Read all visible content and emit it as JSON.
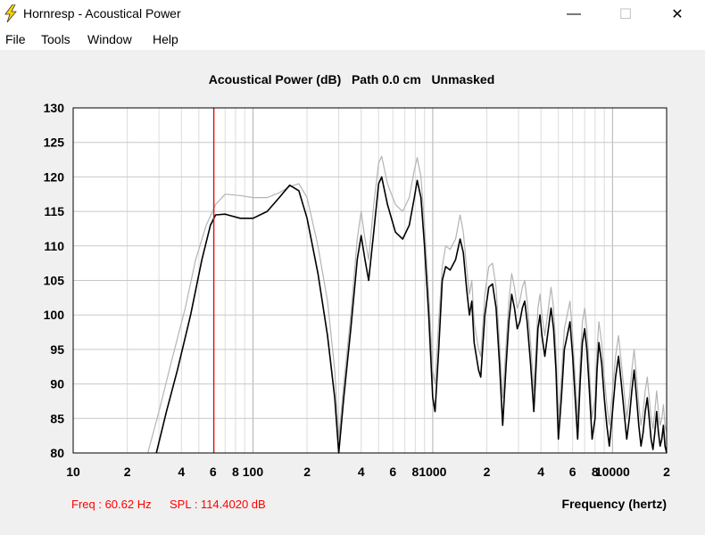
{
  "window": {
    "title": "Hornresp - Acoustical Power",
    "minimize_glyph": "—",
    "maximize_glyph": "☐",
    "close_glyph": "✕"
  },
  "menu": {
    "items": [
      {
        "label": "File"
      },
      {
        "label": "Tools"
      },
      {
        "label": "Window"
      },
      {
        "label": "Help"
      }
    ]
  },
  "colors": {
    "background": "#f0f0f0",
    "plot_bg": "#ffffff",
    "grid": "#c8c8c8",
    "primary_curve": "#000000",
    "secondary_curve": "#b4b4b4",
    "marker": "#ff0000",
    "status_text": "#ff0000"
  },
  "chart_data": {
    "type": "line",
    "title": "Acoustical Power (dB)   Path 0.0 cm   Unmasked",
    "xlabel": "Frequency (hertz)",
    "ylabel": "",
    "x_scale": "log",
    "xlim": [
      10,
      20000
    ],
    "ylim": [
      80,
      130
    ],
    "yticks": [
      80,
      85,
      90,
      95,
      100,
      105,
      110,
      115,
      120,
      125,
      130
    ],
    "xticks": [
      {
        "value": 10,
        "label": "10"
      },
      {
        "value": 20,
        "label": "2"
      },
      {
        "value": 40,
        "label": "4"
      },
      {
        "value": 60,
        "label": "6"
      },
      {
        "value": 80,
        "label": "8"
      },
      {
        "value": 100,
        "label": "100"
      },
      {
        "value": 200,
        "label": "2"
      },
      {
        "value": 400,
        "label": "4"
      },
      {
        "value": 600,
        "label": "6"
      },
      {
        "value": 800,
        "label": "8"
      },
      {
        "value": 1000,
        "label": "1000"
      },
      {
        "value": 2000,
        "label": "2"
      },
      {
        "value": 4000,
        "label": "4"
      },
      {
        "value": 6000,
        "label": "6"
      },
      {
        "value": 8000,
        "label": "8"
      },
      {
        "value": 10000,
        "label": "10000"
      },
      {
        "value": 20000,
        "label": "2"
      }
    ],
    "grid": true,
    "marker": {
      "x": 60.62
    },
    "series": [
      {
        "role": "primary",
        "points": [
          [
            29,
            80
          ],
          [
            33,
            86
          ],
          [
            38,
            92
          ],
          [
            45,
            100
          ],
          [
            52,
            108
          ],
          [
            58,
            113
          ],
          [
            62,
            114.5
          ],
          [
            70,
            114.6
          ],
          [
            85,
            114
          ],
          [
            100,
            114
          ],
          [
            120,
            115
          ],
          [
            140,
            117
          ],
          [
            160,
            118.8
          ],
          [
            180,
            118
          ],
          [
            200,
            114
          ],
          [
            230,
            106
          ],
          [
            260,
            97
          ],
          [
            285,
            88
          ],
          [
            300,
            80
          ],
          [
            320,
            88
          ],
          [
            350,
            98
          ],
          [
            380,
            108
          ],
          [
            400,
            111.5
          ],
          [
            420,
            108
          ],
          [
            440,
            105
          ],
          [
            470,
            112
          ],
          [
            500,
            119
          ],
          [
            520,
            120
          ],
          [
            560,
            116
          ],
          [
            620,
            112
          ],
          [
            680,
            111
          ],
          [
            740,
            113
          ],
          [
            790,
            117
          ],
          [
            820,
            119.5
          ],
          [
            860,
            117
          ],
          [
            900,
            110
          ],
          [
            950,
            100
          ],
          [
            1000,
            88
          ],
          [
            1030,
            86
          ],
          [
            1080,
            95
          ],
          [
            1130,
            105
          ],
          [
            1180,
            107
          ],
          [
            1250,
            106.5
          ],
          [
            1340,
            108
          ],
          [
            1420,
            111
          ],
          [
            1480,
            109
          ],
          [
            1540,
            104
          ],
          [
            1600,
            100
          ],
          [
            1650,
            102
          ],
          [
            1700,
            96
          ],
          [
            1800,
            92
          ],
          [
            1850,
            91
          ],
          [
            1950,
            100
          ],
          [
            2050,
            104
          ],
          [
            2150,
            104.5
          ],
          [
            2250,
            101
          ],
          [
            2350,
            93
          ],
          [
            2450,
            84
          ],
          [
            2550,
            92
          ],
          [
            2650,
            99
          ],
          [
            2750,
            103
          ],
          [
            2850,
            101
          ],
          [
            2950,
            98
          ],
          [
            3050,
            99
          ],
          [
            3150,
            101
          ],
          [
            3250,
            102
          ],
          [
            3350,
            99
          ],
          [
            3500,
            93
          ],
          [
            3650,
            86
          ],
          [
            3750,
            92
          ],
          [
            3850,
            98
          ],
          [
            3950,
            100
          ],
          [
            4050,
            97
          ],
          [
            4200,
            94
          ],
          [
            4400,
            98
          ],
          [
            4550,
            101
          ],
          [
            4700,
            98
          ],
          [
            4850,
            92
          ],
          [
            5000,
            82
          ],
          [
            5200,
            88
          ],
          [
            5400,
            95
          ],
          [
            5600,
            97
          ],
          [
            5800,
            99
          ],
          [
            6000,
            94
          ],
          [
            6200,
            88
          ],
          [
            6400,
            82
          ],
          [
            6600,
            90
          ],
          [
            6800,
            96
          ],
          [
            7000,
            98
          ],
          [
            7200,
            95
          ],
          [
            7400,
            90
          ],
          [
            7700,
            82
          ],
          [
            8000,
            85
          ],
          [
            8200,
            92
          ],
          [
            8400,
            96
          ],
          [
            8700,
            93
          ],
          [
            9000,
            88
          ],
          [
            9300,
            84
          ],
          [
            9600,
            81
          ],
          [
            10000,
            86
          ],
          [
            10400,
            91
          ],
          [
            10800,
            94
          ],
          [
            11200,
            90
          ],
          [
            11600,
            86
          ],
          [
            12000,
            82
          ],
          [
            12400,
            85
          ],
          [
            12800,
            89
          ],
          [
            13200,
            92
          ],
          [
            13600,
            88
          ],
          [
            14000,
            84
          ],
          [
            14400,
            81
          ],
          [
            14800,
            83
          ],
          [
            15200,
            86
          ],
          [
            15600,
            88
          ],
          [
            16000,
            85
          ],
          [
            16400,
            82
          ],
          [
            16800,
            80.5
          ],
          [
            17200,
            83
          ],
          [
            17600,
            86
          ],
          [
            18000,
            83
          ],
          [
            18400,
            81
          ],
          [
            18800,
            82
          ],
          [
            19200,
            84
          ],
          [
            19600,
            81
          ],
          [
            20000,
            80
          ]
        ]
      },
      {
        "role": "secondary",
        "points": [
          [
            26,
            80
          ],
          [
            30,
            86
          ],
          [
            35,
            93
          ],
          [
            42,
            101
          ],
          [
            48,
            108
          ],
          [
            55,
            113
          ],
          [
            62,
            116
          ],
          [
            70,
            117.5
          ],
          [
            85,
            117.3
          ],
          [
            100,
            117
          ],
          [
            120,
            117
          ],
          [
            140,
            117.7
          ],
          [
            160,
            118.6
          ],
          [
            180,
            119
          ],
          [
            200,
            117
          ],
          [
            230,
            110
          ],
          [
            260,
            102
          ],
          [
            285,
            92
          ],
          [
            300,
            82
          ],
          [
            320,
            90
          ],
          [
            350,
            100
          ],
          [
            380,
            111
          ],
          [
            400,
            115
          ],
          [
            420,
            111
          ],
          [
            440,
            108
          ],
          [
            470,
            116
          ],
          [
            500,
            122
          ],
          [
            520,
            123
          ],
          [
            560,
            119
          ],
          [
            620,
            116
          ],
          [
            680,
            115
          ],
          [
            740,
            117
          ],
          [
            790,
            121
          ],
          [
            820,
            122.8
          ],
          [
            860,
            120
          ],
          [
            900,
            113
          ],
          [
            950,
            103
          ],
          [
            1000,
            92
          ],
          [
            1030,
            90
          ],
          [
            1080,
            99
          ],
          [
            1130,
            107
          ],
          [
            1180,
            110
          ],
          [
            1250,
            109.5
          ],
          [
            1340,
            111
          ],
          [
            1420,
            114.5
          ],
          [
            1480,
            112
          ],
          [
            1540,
            107
          ],
          [
            1600,
            103
          ],
          [
            1650,
            105
          ],
          [
            1700,
            99
          ],
          [
            1800,
            95
          ],
          [
            1850,
            94
          ],
          [
            1950,
            103
          ],
          [
            2050,
            107
          ],
          [
            2150,
            107.5
          ],
          [
            2250,
            104
          ],
          [
            2350,
            96
          ],
          [
            2450,
            88
          ],
          [
            2550,
            95
          ],
          [
            2650,
            102
          ],
          [
            2750,
            106
          ],
          [
            2850,
            104
          ],
          [
            2950,
            101
          ],
          [
            3050,
            102
          ],
          [
            3150,
            104
          ],
          [
            3250,
            105
          ],
          [
            3350,
            102
          ],
          [
            3500,
            96
          ],
          [
            3650,
            89
          ],
          [
            3750,
            95
          ],
          [
            3850,
            101
          ],
          [
            3950,
            103
          ],
          [
            4050,
            100
          ],
          [
            4200,
            97
          ],
          [
            4400,
            101
          ],
          [
            4550,
            104
          ],
          [
            4700,
            101
          ],
          [
            4850,
            95
          ],
          [
            5000,
            85
          ],
          [
            5200,
            91
          ],
          [
            5400,
            98
          ],
          [
            5600,
            100
          ],
          [
            5800,
            102
          ],
          [
            6000,
            97
          ],
          [
            6200,
            91
          ],
          [
            6400,
            85
          ],
          [
            6600,
            93
          ],
          [
            6800,
            99
          ],
          [
            7000,
            101
          ],
          [
            7200,
            98
          ],
          [
            7400,
            93
          ],
          [
            7700,
            85
          ],
          [
            8000,
            88
          ],
          [
            8200,
            95
          ],
          [
            8400,
            99
          ],
          [
            8700,
            96
          ],
          [
            9000,
            91
          ],
          [
            9300,
            87
          ],
          [
            9600,
            84
          ],
          [
            10000,
            89
          ],
          [
            10400,
            94
          ],
          [
            10800,
            97
          ],
          [
            11200,
            93
          ],
          [
            11600,
            89
          ],
          [
            12000,
            85
          ],
          [
            12400,
            88
          ],
          [
            12800,
            92
          ],
          [
            13200,
            95
          ],
          [
            13600,
            91
          ],
          [
            14000,
            87
          ],
          [
            14400,
            84
          ],
          [
            14800,
            86
          ],
          [
            15200,
            89
          ],
          [
            15600,
            91
          ],
          [
            16000,
            88
          ],
          [
            16400,
            85
          ],
          [
            16800,
            83.5
          ],
          [
            17200,
            86
          ],
          [
            17600,
            89
          ],
          [
            18000,
            86
          ],
          [
            18400,
            84
          ],
          [
            18800,
            85
          ],
          [
            19200,
            87
          ],
          [
            19600,
            84
          ],
          [
            20000,
            83
          ]
        ]
      }
    ]
  },
  "status": {
    "freq": "Freq : 60.62 Hz",
    "spl": "SPL : 114.4020 dB"
  }
}
